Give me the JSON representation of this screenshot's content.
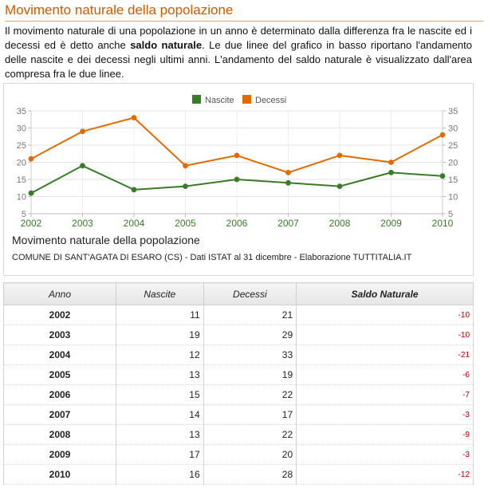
{
  "heading": "Movimento naturale della popolazione",
  "intro": {
    "part1": "Il movimento naturale di una popolazione in un anno è determinato dalla differenza fra le nascite ed i decessi ed è detto anche ",
    "bold": "saldo naturale",
    "part2": ". Le due linee del grafico in basso riportano l'andamento delle nascite e dei decessi negli ultimi anni. L'andamento del saldo naturale è visualizzato dall'area compresa fra le due linee."
  },
  "chart_caption": {
    "title": "Movimento naturale della popolazione",
    "source": "COMUNE DI SANT'AGATA DI ESARO (CS) - Dati ISTAT al 31 dicembre - Elaborazione TUTTITALIA.IT"
  },
  "chart_data": {
    "type": "line",
    "x": [
      "2002",
      "2003",
      "2004",
      "2005",
      "2006",
      "2007",
      "2008",
      "2009",
      "2010"
    ],
    "series": [
      {
        "name": "Nascite",
        "color": "#3a7a2a",
        "values": [
          11,
          19,
          12,
          13,
          15,
          14,
          13,
          17,
          16
        ]
      },
      {
        "name": "Decessi",
        "color": "#e06c00",
        "values": [
          21,
          29,
          33,
          19,
          22,
          17,
          22,
          20,
          28
        ]
      }
    ],
    "ylim": [
      5,
      35
    ],
    "yticks": [
      5,
      10,
      15,
      20,
      25,
      30,
      35
    ],
    "grid": true,
    "legend": "top-center",
    "xtick_color": "#3a7a2a"
  },
  "table": {
    "headers": [
      "Anno",
      "Nascite",
      "Decessi",
      "Saldo Naturale"
    ],
    "rows": [
      [
        "2002",
        "11",
        "21",
        "-10"
      ],
      [
        "2003",
        "19",
        "29",
        "-10"
      ],
      [
        "2004",
        "12",
        "33",
        "-21"
      ],
      [
        "2005",
        "13",
        "19",
        "-6"
      ],
      [
        "2006",
        "15",
        "22",
        "-7"
      ],
      [
        "2007",
        "14",
        "17",
        "-3"
      ],
      [
        "2008",
        "13",
        "22",
        "-9"
      ],
      [
        "2009",
        "17",
        "20",
        "-3"
      ],
      [
        "2010",
        "16",
        "28",
        "-12"
      ]
    ]
  }
}
